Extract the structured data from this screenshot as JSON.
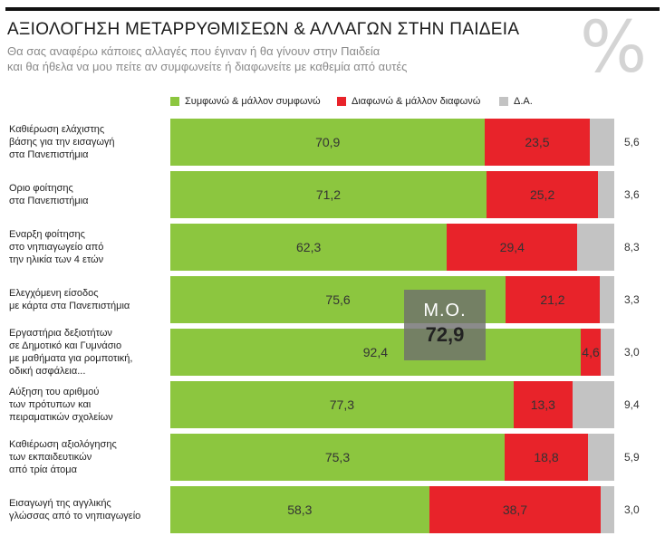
{
  "header": {
    "title": "ΑΞΙΟΛΟΓΗΣΗ ΜΕΤΑΡΡΥΘΜΙΣΕΩΝ & ΑΛΛΑΓΩΝ ΣΤΗΝ ΠΑΙΔΕΙΑ",
    "subtitle_line1": "Θα σας αναφέρω κάποιες αλλαγές που έγιναν ή θα γίνουν στην Παιδεία",
    "subtitle_line2": "και θα ήθελα να μου πείτε αν συμφωνείτε ή διαφωνείτε με καθεμία από αυτές",
    "percent_symbol": "%"
  },
  "colors": {
    "agree": "#8cc63f",
    "disagree": "#e8232a",
    "dk": "#c3c3c3"
  },
  "mean_box": {
    "label": "Μ.Ο.",
    "value": "72,9"
  },
  "chart_data": {
    "type": "bar",
    "orientation": "horizontal",
    "stacked": true,
    "title": "ΑΞΙΟΛΟΓΗΣΗ ΜΕΤΑΡΡΥΘΜΙΣΕΩΝ & ΑΛΛΑΓΩΝ ΣΤΗΝ ΠΑΙΔΕΙΑ",
    "unit": "%",
    "legend": [
      "Συμφωνώ & μάλλον συμφωνώ",
      "Διαφωνώ & μάλλον διαφωνώ",
      "Δ.Α."
    ],
    "categories": [
      [
        "Καθιέρωση ελάχιστης",
        "βάσης για την εισαγωγή",
        "στα Πανεπιστήμια"
      ],
      [
        "Οριο φοίτησης",
        "στα Πανεπιστήμια"
      ],
      [
        "Εναρξη φοίτησης",
        "στο νηπιαγωγείο από",
        "την ηλικία των 4 ετών"
      ],
      [
        "Ελεγχόμενη είσοδος",
        "με κάρτα στα Πανεπιστήμια"
      ],
      [
        "Εργαστήρια δεξιοτήτων",
        "σε Δημοτικό και Γυμνάσιο",
        "με μαθήματα για ρομποτική,",
        "οδική ασφάλεια..."
      ],
      [
        "Αύξηση του αριθμού",
        "των πρότυπων και",
        "πειραματικών σχολείων"
      ],
      [
        "Καθιέρωση αξιολόγησης",
        "των εκπαιδευτικών",
        "από τρία άτομα"
      ],
      [
        "Εισαγωγή της αγγλικής",
        "γλώσσας από το νηπιαγωγείο"
      ]
    ],
    "series": [
      {
        "name": "Συμφωνώ & μάλλον συμφωνώ",
        "values": [
          70.9,
          71.2,
          62.3,
          75.6,
          92.4,
          77.3,
          75.3,
          58.3
        ],
        "labels": [
          "70,9",
          "71,2",
          "62,3",
          "75,6",
          "92,4",
          "77,3",
          "75,3",
          "58,3"
        ]
      },
      {
        "name": "Διαφωνώ & μάλλον διαφωνώ",
        "values": [
          23.5,
          25.2,
          29.4,
          21.2,
          4.6,
          13.3,
          18.8,
          38.7
        ],
        "labels": [
          "23,5",
          "25,2",
          "29,4",
          "21,2",
          "4,6",
          "13,3",
          "18,8",
          "38,7"
        ]
      },
      {
        "name": "Δ.Α.",
        "values": [
          5.6,
          3.6,
          8.3,
          3.3,
          3.0,
          9.4,
          5.9,
          3.0
        ],
        "labels": [
          "5,6",
          "3,6",
          "8,3",
          "3,3",
          "3,0",
          "9,4",
          "5,9",
          "3,0"
        ]
      }
    ],
    "xlim": [
      0,
      100
    ]
  }
}
